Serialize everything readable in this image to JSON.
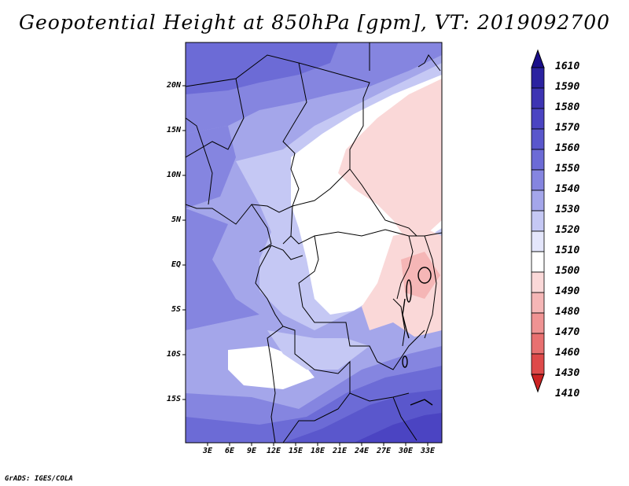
{
  "title": "Geopotential Height at 850hPa [gpm], VT: 2019092700",
  "credit": "GrADS: IGES/COLA",
  "y_labels": [
    "20N",
    "15N",
    "10N",
    "5N",
    "EQ",
    "5S",
    "10S",
    "15S"
  ],
  "x_labels": [
    "3E",
    "6E",
    "9E",
    "12E",
    "15E",
    "18E",
    "21E",
    "24E",
    "27E",
    "30E",
    "33E"
  ],
  "colorbar": {
    "levels": [
      "1610",
      "1590",
      "1580",
      "1570",
      "1560",
      "1550",
      "1540",
      "1530",
      "1520",
      "1510",
      "1500",
      "1490",
      "1480",
      "1470",
      "1460",
      "1430",
      "1410"
    ],
    "colors": [
      "#1a0f8a",
      "#2b22a0",
      "#3d34b3",
      "#4b44c2",
      "#5a57cc",
      "#6c6bd6",
      "#8585e0",
      "#a4a6ea",
      "#c5c8f4",
      "#e4e6fb",
      "#ffffff",
      "#fad8d8",
      "#f5b6b6",
      "#ef9393",
      "#e87070",
      "#de4a4a",
      "#cc2222"
    ]
  },
  "colors": {
    "land_border": "#000000",
    "deep_blue": "#4b44c2",
    "mid_blue": "#8585e0",
    "light_blue": "#c5c8f4",
    "pale_red": "#fad8d8",
    "red": "#f5b6b6"
  }
}
